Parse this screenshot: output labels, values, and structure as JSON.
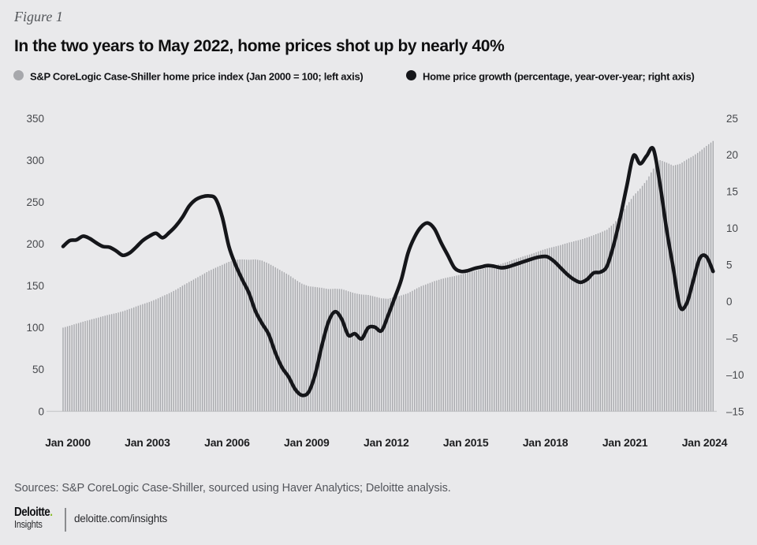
{
  "page": {
    "background": "#e9e9eb"
  },
  "header": {
    "figure_label": "Figure 1",
    "title": "In the two years to May 2022, home prices shot up by nearly 40%"
  },
  "legend": {
    "items": [
      {
        "label": "S&P CoreLogic Case-Shiller home price index (Jan 2000 = 100; left axis)",
        "color": "#a7a8ac",
        "type": "bar"
      },
      {
        "label": "Home price growth (percentage, year-over-year; right axis)",
        "color": "#15161a",
        "type": "line"
      }
    ]
  },
  "chart_data": {
    "type": "combo",
    "frequency": "quarterly",
    "x_start": "Jan 2000",
    "x_end": "Jul 2024",
    "x_tick_labels": [
      "Jan 2000",
      "Jan 2003",
      "Jan 2006",
      "Jan 2009",
      "Jan 2012",
      "Jan 2015",
      "Jan 2018",
      "Jan 2021",
      "Jan 2024"
    ],
    "x_tick_month_index": [
      0,
      36,
      72,
      108,
      144,
      180,
      216,
      252,
      288
    ],
    "left_axis": {
      "min": 0,
      "max": 350,
      "tick_values": [
        350,
        300,
        250,
        200,
        150,
        100,
        50,
        0
      ],
      "tick_labels": [
        "350",
        "300",
        "250",
        "200",
        "150",
        "100",
        "50",
        "0"
      ]
    },
    "right_axis": {
      "min": -15,
      "max": 25,
      "tick_values": [
        25,
        20,
        15,
        10,
        5,
        0,
        -5,
        -10,
        -15
      ],
      "tick_labels": [
        "25",
        "20",
        "15",
        "10",
        "5",
        "0",
        "–5",
        "–10",
        "–15"
      ]
    },
    "grid": "none",
    "legend_position": "top",
    "series": [
      {
        "name": "S&P CoreLogic Case-Shiller home price index (Jan 2000 = 100)",
        "type": "bar",
        "axis": "left",
        "color": "#a7a8ac",
        "values": [
          100,
          102.2,
          104.7,
          107,
          109.2,
          111.3,
          113.5,
          115.6,
          117.3,
          119.5,
          122.2,
          125.2,
          128,
          130.6,
          133.8,
          137.5,
          141,
          145.2,
          150,
          154.5,
          158.8,
          163.3,
          167.8,
          171.5,
          175,
          178.5,
          181,
          181.5,
          181,
          181.5,
          180,
          176.5,
          172,
          167.5,
          163,
          157.5,
          152.5,
          149.5,
          148.5,
          147.5,
          146,
          146.5,
          146,
          143.5,
          141,
          139.5,
          139,
          137,
          135,
          134.5,
          136.5,
          138.5,
          141,
          145.5,
          149.5,
          152.5,
          155.5,
          158,
          160,
          161.5,
          163.5,
          165.5,
          167.5,
          169.5,
          172,
          174,
          176,
          178.5,
          181.5,
          184,
          186.5,
          189,
          192,
          194.5,
          196.5,
          198.5,
          201,
          203,
          205,
          207.5,
          210.5,
          213.5,
          217,
          224,
          233.5,
          246,
          257.5,
          266,
          276,
          290,
          300,
          297,
          293.5,
          295.5,
          300.5,
          305,
          310.5,
          317,
          323
        ]
      },
      {
        "name": "Home price growth (percentage, year-over-year)",
        "type": "line",
        "axis": "right",
        "color": "#15161a",
        "values": [
          7.5,
          8.3,
          8.4,
          8.9,
          8.6,
          8,
          7.5,
          7.4,
          6.9,
          6.3,
          6.6,
          7.4,
          8.3,
          8.9,
          9.3,
          8.7,
          9.4,
          10.3,
          11.5,
          13,
          13.9,
          14.3,
          14.4,
          14,
          11.5,
          7.5,
          5,
          3,
          1.2,
          -1.3,
          -3,
          -4.5,
          -7,
          -9,
          -10.3,
          -12,
          -12.8,
          -12.4,
          -10,
          -6.1,
          -2.8,
          -1.4,
          -2.4,
          -4.6,
          -4.4,
          -5.1,
          -3.6,
          -3.5,
          -4,
          -1.9,
          0.5,
          3,
          6.6,
          8.8,
          10.2,
          10.7,
          9.9,
          8,
          6.3,
          4.6,
          4.1,
          4.2,
          4.5,
          4.7,
          4.9,
          4.8,
          4.6,
          4.7,
          5,
          5.3,
          5.6,
          5.9,
          6.1,
          6.1,
          5.5,
          4.6,
          3.7,
          3,
          2.6,
          3,
          3.9,
          4,
          4.8,
          7.7,
          11.5,
          15.8,
          19.9,
          18.8,
          19.9,
          20.8,
          16,
          9.8,
          4.5,
          -0.7,
          -0.3,
          2.8,
          5.9,
          6.1,
          4.1
        ]
      }
    ]
  },
  "source_note": "Sources: S&P CoreLogic Case-Shiller, sourced using Haver Analytics; Deloitte analysis.",
  "footer": {
    "brand": "Deloitte",
    "brand_dot": ".",
    "brand_sub": "Insights",
    "url": "deloitte.com/insights",
    "accent_green": "#86bc25"
  }
}
